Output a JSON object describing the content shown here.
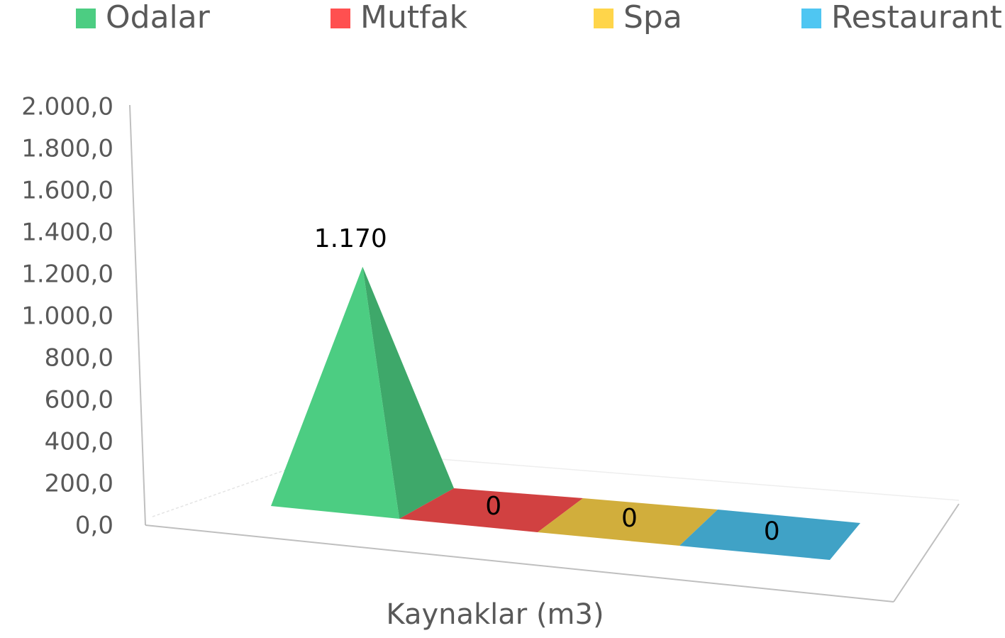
{
  "chart_data": {
    "type": "pyramid",
    "x_label": "Kaynaklar (m3)",
    "categories": [
      null
    ],
    "series": [
      {
        "name": "Odalar",
        "color": "#4ccd82",
        "values": [
          1170
        ],
        "value_labels": [
          "1.170"
        ]
      },
      {
        "name": "Mutfak",
        "color": "#ff5050",
        "values": [
          0
        ],
        "value_labels": [
          "0"
        ]
      },
      {
        "name": "Spa",
        "color": "#ffd54a",
        "values": [
          0
        ],
        "value_labels": [
          "0"
        ]
      },
      {
        "name": "Restaurant",
        "color": "#4fc6f2",
        "values": [
          0
        ],
        "value_labels": [
          "0"
        ]
      }
    ],
    "ylim": [
      0,
      2000
    ],
    "yticks": [
      {
        "value": 0,
        "label": "0,0"
      },
      {
        "value": 200,
        "label": "200,0"
      },
      {
        "value": 400,
        "label": "400,0"
      },
      {
        "value": 600,
        "label": "600,0"
      },
      {
        "value": 800,
        "label": "800,0"
      },
      {
        "value": 1000,
        "label": "1.000,0"
      },
      {
        "value": 1200,
        "label": "1.200,0"
      },
      {
        "value": 1400,
        "label": "1.400,0"
      },
      {
        "value": 1600,
        "label": "1.600,0"
      },
      {
        "value": 1800,
        "label": "1.800,0"
      },
      {
        "value": 2000,
        "label": "2.000,0"
      }
    ],
    "legend": "top",
    "grid": false
  }
}
